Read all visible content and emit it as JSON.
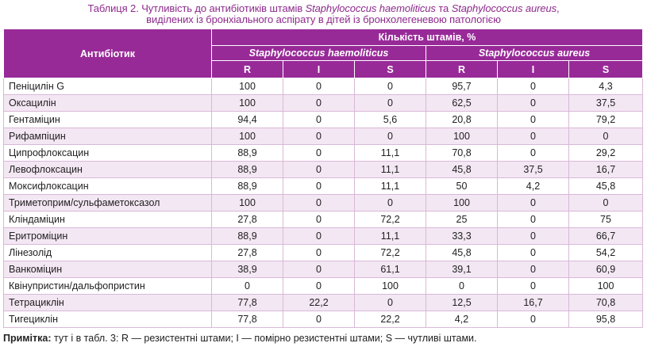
{
  "caption": {
    "prefix": "Таблиця 2.  Чутливість до антибіотиків штамів ",
    "sp1": "Staphylococcus haemoliticus",
    "mid": " та ",
    "sp2": "Staphylococcus aureus",
    "suffix": ",",
    "line2": "виділених із бронхіального аспірату в дітей із бронхолегеневою патологією"
  },
  "header": {
    "antibiotic": "Антибіотик",
    "group": "Кількість штамів, %",
    "species": [
      "Staphylococcus haemoliticus",
      "Staphylococcus aureus"
    ],
    "cols": [
      "R",
      "I",
      "S",
      "R",
      "I",
      "S"
    ]
  },
  "rows": [
    {
      "name": "Пеніцилін G",
      "v": [
        "100",
        "0",
        "0",
        "95,7",
        "0",
        "4,3"
      ]
    },
    {
      "name": "Оксацилін",
      "v": [
        "100",
        "0",
        "0",
        "62,5",
        "0",
        "37,5"
      ]
    },
    {
      "name": "Гентаміцин",
      "v": [
        "94,4",
        "0",
        "5,6",
        "20,8",
        "0",
        "79,2"
      ]
    },
    {
      "name": "Рифампіцин",
      "v": [
        "100",
        "0",
        "0",
        "100",
        "0",
        "0"
      ]
    },
    {
      "name": "Ципрофлоксацин",
      "v": [
        "88,9",
        "0",
        "11,1",
        "70,8",
        "0",
        "29,2"
      ]
    },
    {
      "name": "Левофлоксацин",
      "v": [
        "88,9",
        "0",
        "11,1",
        "45,8",
        "37,5",
        "16,7"
      ]
    },
    {
      "name": "Моксифлоксацин",
      "v": [
        "88,9",
        "0",
        "11,1",
        "50",
        "4,2",
        "45,8"
      ]
    },
    {
      "name": "Триметоприм/сульфаметоксазол",
      "v": [
        "100",
        "0",
        "0",
        "100",
        "0",
        "0"
      ]
    },
    {
      "name": "Кліндаміцин",
      "v": [
        "27,8",
        "0",
        "72,2",
        "25",
        "0",
        "75"
      ]
    },
    {
      "name": "Еритроміцин",
      "v": [
        "88,9",
        "0",
        "11,1",
        "33,3",
        "0",
        "66,7"
      ]
    },
    {
      "name": "Лінезолід",
      "v": [
        "27,8",
        "0",
        "72,2",
        "45,8",
        "0",
        "54,2"
      ]
    },
    {
      "name": "Ванкоміцин",
      "v": [
        "38,9",
        "0",
        "61,1",
        "39,1",
        "0",
        "60,9"
      ]
    },
    {
      "name": "Квінупристин/дальфопристин",
      "v": [
        "0",
        "0",
        "100",
        "0",
        "0",
        "100"
      ]
    },
    {
      "name": "Тетрациклін",
      "v": [
        "77,8",
        "22,2",
        "0",
        "12,5",
        "16,7",
        "70,8"
      ]
    },
    {
      "name": "Тигециклін",
      "v": [
        "77,8",
        "0",
        "22,2",
        "4,2",
        "0",
        "95,8"
      ]
    }
  ],
  "note": {
    "label": "Примітка:",
    "text": " тут і в табл. 3: R — резистентні штами; I — помірно резистентні штами; S — чутливі штами."
  }
}
